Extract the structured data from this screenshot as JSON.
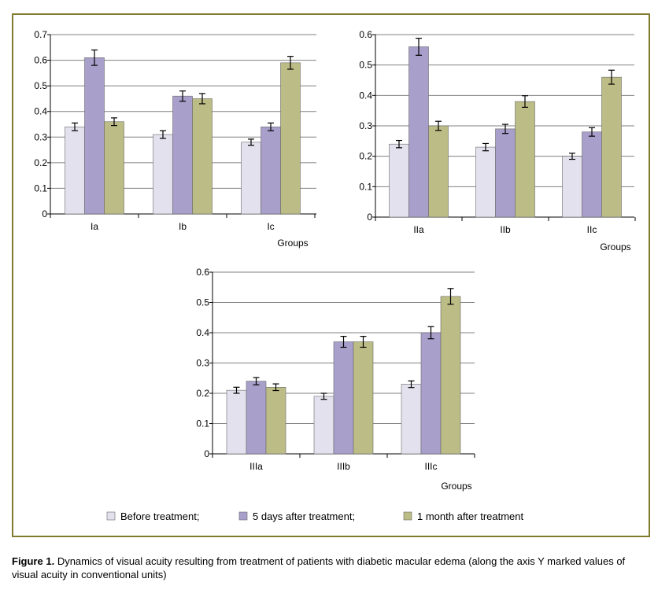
{
  "colors": {
    "before": "#e3e1ee",
    "five_days": "#a89fcb",
    "one_month": "#bcbc86",
    "frame": "#807a2e",
    "grid": "#808080"
  },
  "legend": [
    {
      "label": "Before treatment;",
      "color": "#e3e1ee"
    },
    {
      "label": "5 days after treatment;",
      "color": "#a89fcb"
    },
    {
      "label": "1 month after treatment",
      "color": "#bcbc86"
    }
  ],
  "caption": {
    "bold": "Figure 1.",
    "text": "Dynamics of visual acuity resulting from treatment of patients with diabetic macular edema (along the axis Y marked values of visual acuity in conventional units)"
  },
  "chart_data": [
    {
      "type": "bar",
      "xlabel": "Groups",
      "ylim": [
        0,
        0.7
      ],
      "yticks": [
        "0",
        "0.1",
        "0.2",
        "0.3",
        "0.4",
        "0.5",
        "0.6",
        "0.7"
      ],
      "categories": [
        "Ia",
        "Ib",
        "Ic"
      ],
      "series": [
        {
          "name": "Before treatment;",
          "values": [
            0.34,
            0.31,
            0.28
          ],
          "errors": [
            0.015,
            0.015,
            0.012
          ]
        },
        {
          "name": "5 days after treatment;",
          "values": [
            0.61,
            0.46,
            0.34
          ],
          "errors": [
            0.03,
            0.02,
            0.015
          ]
        },
        {
          "name": "1 month after treatment",
          "values": [
            0.36,
            0.45,
            0.59
          ],
          "errors": [
            0.015,
            0.02,
            0.025
          ]
        }
      ]
    },
    {
      "type": "bar",
      "xlabel": "Groups",
      "ylim": [
        0,
        0.6
      ],
      "yticks": [
        "0",
        "0.1",
        "0.2",
        "0.3",
        "0.4",
        "0.5",
        "0.6"
      ],
      "categories": [
        "IIa",
        "IIb",
        "IIc"
      ],
      "series": [
        {
          "name": "Before treatment;",
          "values": [
            0.24,
            0.23,
            0.2
          ],
          "errors": [
            0.012,
            0.012,
            0.01
          ]
        },
        {
          "name": "5 days after treatment;",
          "values": [
            0.56,
            0.29,
            0.28
          ],
          "errors": [
            0.028,
            0.015,
            0.014
          ]
        },
        {
          "name": "1 month after treatment",
          "values": [
            0.3,
            0.38,
            0.46
          ],
          "errors": [
            0.015,
            0.019,
            0.023
          ]
        }
      ]
    },
    {
      "type": "bar",
      "xlabel": "Groups",
      "ylim": [
        0,
        0.6
      ],
      "yticks": [
        "0",
        "0.1",
        "0.2",
        "0.3",
        "0.4",
        "0.5",
        "0.6"
      ],
      "categories": [
        "IIIa",
        "IIIb",
        "IIIc"
      ],
      "series": [
        {
          "name": "Before treatment;",
          "values": [
            0.21,
            0.19,
            0.23
          ],
          "errors": [
            0.01,
            0.01,
            0.011
          ]
        },
        {
          "name": "5 days after treatment;",
          "values": [
            0.24,
            0.37,
            0.4
          ],
          "errors": [
            0.012,
            0.018,
            0.02
          ]
        },
        {
          "name": "1 month after treatment",
          "values": [
            0.22,
            0.37,
            0.52
          ],
          "errors": [
            0.011,
            0.018,
            0.026
          ]
        }
      ]
    }
  ]
}
